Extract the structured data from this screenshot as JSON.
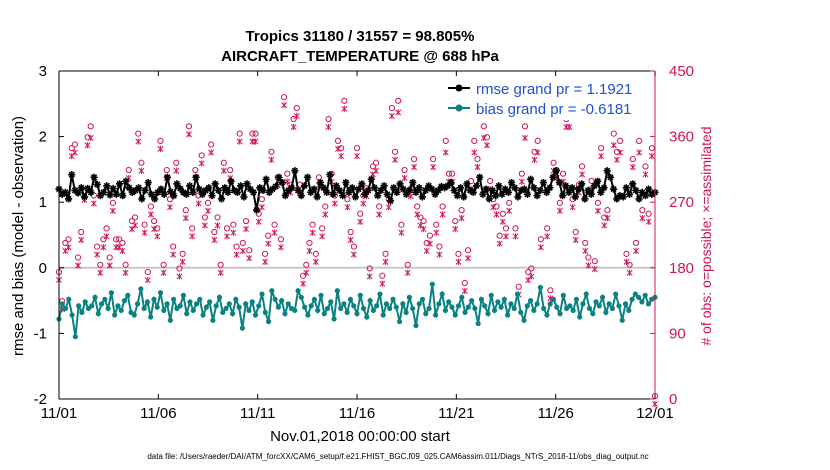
{
  "chart_data": {
    "type": "line",
    "title": "Tropics 31180 / 31557 = 98.805%",
    "subtitle": "AIRCRAFT_TEMPERATURE @ 688 hPa",
    "xlabel": "Nov.01,2018 00:00:00 start",
    "ylabel": "rmse and bias (model - observation)",
    "y2label": "# of obs: o=possible; ×=assimilated",
    "footnote": "data file: /Users/raeder/DAI/ATM_forcXX/CAM6_setup/f.e21.FHIST_BGC.f09_025.CAM6assim.011/Diags_NTrS_2018-11/obs_diag_output.nc",
    "xticks": [
      "11/01",
      "11/06",
      "11/11",
      "11/16",
      "11/21",
      "11/26",
      "12/01"
    ],
    "xlim": [
      0,
      30
    ],
    "ylim": [
      -2,
      3
    ],
    "yticks": [
      "-2",
      "-1",
      "0",
      "1",
      "2",
      "3"
    ],
    "y2lim": [
      0,
      450
    ],
    "y2ticks": [
      "0",
      "90",
      "180",
      "270",
      "360",
      "450"
    ],
    "series": [
      {
        "name": "rmse grand pr = 1.1921",
        "color": "#000000",
        "marker": "asterisk",
        "values": [
          1.2,
          1.12,
          1.15,
          1.05,
          1.42,
          1.18,
          1.14,
          1.22,
          1.08,
          1.21,
          1.15,
          1.38,
          1.27,
          1.1,
          1.15,
          1.25,
          1.11,
          1.21,
          1.12,
          1.28,
          1.1,
          1.32,
          1.22,
          1.15,
          1.18,
          1.22,
          1.05,
          1.18,
          1.3,
          1.12,
          1.05,
          1.15,
          1.2,
          1.12,
          1.38,
          1.16,
          1.1,
          1.28,
          1.21,
          1.15,
          1.12,
          1.25,
          1.15,
          1.38,
          1.2,
          1.12,
          1.18,
          1.22,
          1.1,
          1.28,
          1.18,
          1.05,
          1.22,
          1.15,
          1.32,
          1.18,
          1.15,
          1.25,
          1.08,
          1.28,
          1.2,
          1.15,
          0.88,
          1.22,
          1.18,
          1.35,
          1.15,
          1.2,
          1.24,
          1.38,
          1.3,
          1.1,
          1.18,
          1.22,
          1.48,
          1.18,
          1.1,
          1.25,
          1.38,
          1.15,
          1.2,
          1.08,
          1.3,
          1.22,
          1.15,
          1.42,
          1.12,
          1.25,
          1.18,
          1.1,
          1.3,
          1.15,
          1.22,
          1.08,
          1.2,
          1.28,
          1.12,
          1.18,
          1.35,
          1.22,
          1.1,
          1.18,
          1.25,
          1.12,
          1.02,
          1.22,
          1.15,
          1.28,
          1.2,
          1.12,
          1.18,
          1.3,
          1.15,
          1.22,
          1.08,
          1.18,
          1.25,
          1.2,
          1.12,
          1.18,
          1.24,
          1.22,
          1.25,
          1.3,
          1.18,
          1.1,
          1.22,
          1.08,
          1.28,
          1.18,
          1.15,
          1.25,
          1.38,
          1.12,
          1.2,
          1.05,
          1.18,
          1.1,
          1.25,
          1.12,
          1.2,
          1.15,
          1.3,
          1.22,
          1.08,
          1.18,
          1.2,
          1.12,
          1.35,
          1.22,
          1.1,
          1.18,
          1.3,
          1.15,
          1.22,
          1.38,
          1.48,
          1.3,
          1.1,
          1.25,
          1.15,
          1.22,
          1.08,
          1.2,
          1.28,
          1.05,
          1.18,
          1.12,
          1.25,
          1.32,
          1.15,
          1.22,
          1.48,
          1.38,
          1.2,
          1.05,
          1.1,
          1.08,
          1.22,
          1.12,
          1.28,
          1.18,
          1.05,
          1.15,
          1.1,
          1.2,
          1.12,
          1.15
        ]
      },
      {
        "name": "bias grand pr = -0.6181",
        "color": "#0b8282",
        "marker": "dot",
        "values": [
          -0.78,
          -0.55,
          -0.62,
          -0.48,
          -0.72,
          -1.05,
          -0.58,
          -0.68,
          -0.52,
          -0.62,
          -0.58,
          -0.45,
          -0.7,
          -0.55,
          -0.48,
          -0.62,
          -0.38,
          -0.72,
          -0.58,
          -0.65,
          -0.5,
          -0.42,
          -0.68,
          -0.72,
          -0.55,
          -0.32,
          -0.62,
          -0.52,
          -0.75,
          -0.48,
          -0.6,
          -0.38,
          -0.65,
          -0.55,
          -0.8,
          -0.48,
          -0.62,
          -0.58,
          -0.42,
          -0.7,
          -0.52,
          -0.65,
          -0.55,
          -0.48,
          -0.72,
          -0.6,
          -0.52,
          -0.8,
          -0.58,
          -0.45,
          -0.68,
          -0.62,
          -0.55,
          -0.7,
          -0.48,
          -0.6,
          -0.92,
          -0.55,
          -0.65,
          -0.52,
          -0.72,
          -0.58,
          -0.4,
          -0.68,
          -0.82,
          -0.35,
          -0.48,
          -0.6,
          -0.5,
          -0.7,
          -0.55,
          -0.62,
          -0.65,
          -0.35,
          -0.45,
          -0.6,
          -0.72,
          -0.58,
          -0.48,
          -0.65,
          -0.42,
          -0.7,
          -0.62,
          -0.52,
          -0.78,
          -0.35,
          -0.62,
          -0.55,
          -0.68,
          -0.48,
          -0.58,
          -0.7,
          -0.42,
          -0.62,
          -0.75,
          -0.5,
          -0.65,
          -0.58,
          -0.4,
          -0.72,
          -0.55,
          -0.62,
          -0.48,
          -0.6,
          -0.82,
          -0.55,
          -0.68,
          -0.45,
          -0.62,
          -0.88,
          -0.55,
          -0.48,
          -0.7,
          -0.62,
          -0.25,
          -0.72,
          -0.55,
          -0.4,
          -0.65,
          -0.52,
          -0.6,
          -0.72,
          -0.58,
          -0.45,
          -0.68,
          -0.6,
          -0.5,
          -0.62,
          -0.85,
          -0.48,
          -0.58,
          -0.7,
          -0.42,
          -0.65,
          -0.52,
          -0.6,
          -0.48,
          -0.72,
          -0.55,
          -0.62,
          -0.4,
          -0.68,
          -0.8,
          -0.58,
          -0.5,
          -0.65,
          -0.55,
          -0.3,
          -0.62,
          -0.72,
          -0.55,
          -0.48,
          -0.6,
          -0.7,
          -0.42,
          -0.62,
          -0.58,
          -0.65,
          -0.48,
          -0.75,
          -0.55,
          -0.4,
          -0.62,
          -0.7,
          -0.52,
          -0.58,
          -0.45,
          -0.68,
          -0.55,
          -0.62,
          -0.4,
          -0.58,
          -0.8,
          -0.55,
          -0.65,
          -0.48,
          -0.4,
          -0.45,
          -0.52,
          -0.42,
          -0.55,
          -0.48,
          -0.45
        ]
      }
    ],
    "obs_possible": [
      170,
      130,
      210,
      215,
      340,
      345,
      190,
      225,
      280,
      355,
      370,
      275,
      205,
      180,
      215,
      230,
      190,
      265,
      215,
      215,
      210,
      180,
      310,
      240,
      245,
      360,
      320,
      235,
      170,
      260,
      240,
      230,
      350,
      180,
      310,
      270,
      205,
      320,
      175,
      195,
      255,
      370,
      230,
      310,
      275,
      330,
      245,
      265,
      345,
      225,
      245,
      180,
      320,
      230,
      310,
      235,
      205,
      360,
      210,
      240,
      200,
      360,
      360,
      250,
      270,
      195,
      220,
      335,
      235,
      300,
      215,
      410,
      305,
      290,
      380,
      395,
      290,
      165,
      180,
      210,
      235,
      195,
      300,
      230,
      260,
      380,
      305,
      275,
      350,
      340,
      405,
      270,
      225,
      205,
      340,
      250,
      275,
      285,
      175,
      315,
      320,
      260,
      165,
      195,
      270,
      395,
      335,
      405,
      235,
      310,
      180,
      285,
      325,
      260,
      245,
      240,
      210,
      220,
      325,
      235,
      205,
      260,
      350,
      305,
      305,
      240,
      195,
      255,
      155,
      200,
      295,
      350,
      325,
      400,
      370,
      355,
      295,
      270,
      260,
      220,
      250,
      230,
      265,
      410,
      230,
      150,
      305,
      370,
      170,
      175,
      335,
      350,
      215,
      415,
      230,
      145,
      320,
      310,
      265,
      305,
      380,
      385,
      270,
      225,
      290,
      315,
      210,
      190,
      295,
      185,
      265,
      340,
      245,
      255,
      395,
      360,
      335,
      350,
      400,
      195,
      180,
      325,
      210,
      350,
      255,
      315,
      250,
      340,
      0
    ],
    "obs_assimilated": [
      170,
      130,
      210,
      215,
      340,
      345,
      190,
      225,
      280,
      355,
      365,
      275,
      205,
      180,
      215,
      230,
      190,
      265,
      215,
      215,
      210,
      180,
      310,
      240,
      245,
      360,
      320,
      235,
      170,
      260,
      240,
      230,
      350,
      180,
      310,
      270,
      205,
      320,
      175,
      195,
      255,
      370,
      230,
      310,
      275,
      330,
      245,
      265,
      345,
      225,
      245,
      180,
      320,
      230,
      310,
      235,
      205,
      360,
      210,
      240,
      200,
      360,
      360,
      250,
      270,
      195,
      220,
      335,
      235,
      300,
      215,
      410,
      305,
      290,
      380,
      395,
      290,
      165,
      180,
      210,
      235,
      195,
      300,
      230,
      260,
      380,
      305,
      275,
      350,
      340,
      405,
      270,
      225,
      205,
      340,
      250,
      275,
      285,
      175,
      315,
      320,
      260,
      165,
      195,
      270,
      395,
      335,
      400,
      235,
      310,
      180,
      285,
      325,
      260,
      245,
      240,
      210,
      220,
      325,
      235,
      205,
      260,
      345,
      305,
      305,
      240,
      195,
      255,
      155,
      200,
      295,
      345,
      325,
      400,
      365,
      355,
      295,
      270,
      260,
      220,
      250,
      230,
      265,
      405,
      230,
      150,
      305,
      365,
      170,
      175,
      335,
      345,
      215,
      410,
      230,
      145,
      320,
      310,
      265,
      305,
      380,
      380,
      270,
      225,
      290,
      315,
      210,
      190,
      295,
      185,
      265,
      340,
      245,
      255,
      395,
      355,
      335,
      345,
      395,
      195,
      180,
      325,
      210,
      345,
      255,
      315,
      250,
      340,
      0
    ],
    "obs_color": "#d0145a",
    "zero_line_color": "#c8c8c8"
  }
}
